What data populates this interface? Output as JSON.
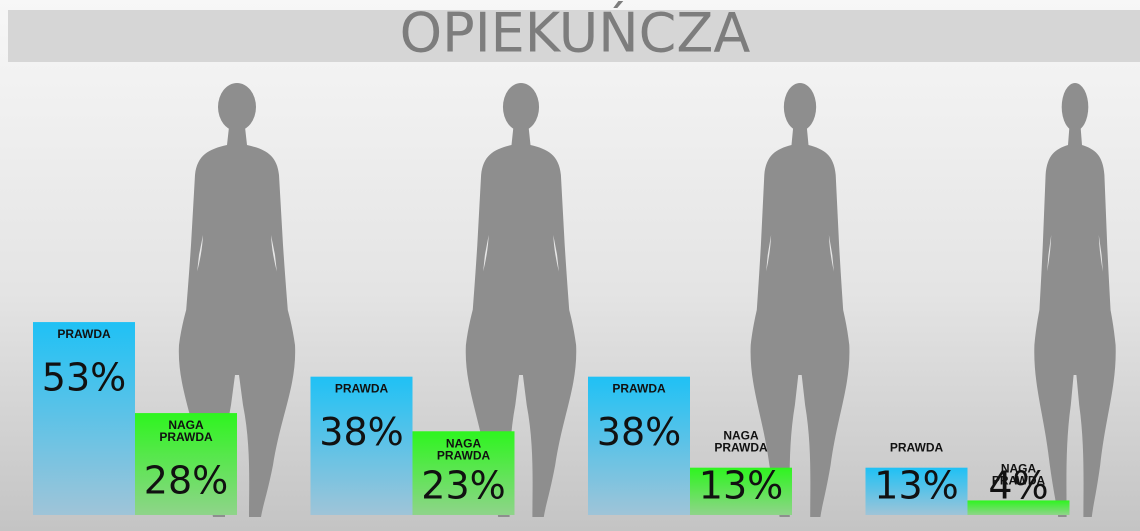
{
  "chart_data": {
    "type": "bar",
    "title": "OPIEKUŃCZA",
    "categories": [
      null,
      null,
      null,
      null
    ],
    "series": [
      {
        "name": "PRAWDA",
        "color": "#1fc1f5",
        "values": [
          53,
          38,
          38,
          13
        ],
        "value_labels": [
          "53%",
          "38%",
          "38%",
          "13%"
        ]
      },
      {
        "name": "NAGA PRAWDA",
        "color": "#2ef51f",
        "values": [
          28,
          23,
          13,
          4
        ],
        "value_labels": [
          "28%",
          "23%",
          "13%",
          "4%"
        ]
      }
    ]
  }
}
